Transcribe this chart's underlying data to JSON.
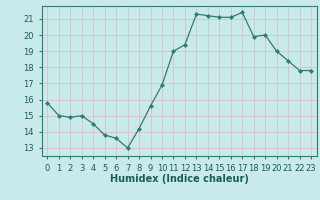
{
  "x": [
    0,
    1,
    2,
    3,
    4,
    5,
    6,
    7,
    8,
    9,
    10,
    11,
    12,
    13,
    14,
    15,
    16,
    17,
    18,
    19,
    20,
    21,
    22,
    23
  ],
  "y": [
    15.8,
    15.0,
    14.9,
    15.0,
    14.5,
    13.8,
    13.6,
    13.0,
    14.2,
    15.6,
    16.9,
    19.0,
    19.4,
    21.3,
    21.2,
    21.1,
    21.1,
    21.4,
    19.9,
    20.0,
    19.0,
    18.4,
    17.8,
    17.8
  ],
  "line_color": "#2e7d6e",
  "marker": "D",
  "marker_size": 2,
  "bg_color": "#c8eaea",
  "grid_color": "#ddbfbf",
  "xlabel": "Humidex (Indice chaleur)",
  "ylim": [
    12.5,
    21.8
  ],
  "xlim": [
    -0.5,
    23.5
  ],
  "yticks": [
    13,
    14,
    15,
    16,
    17,
    18,
    19,
    20,
    21
  ],
  "xtick_labels": [
    "0",
    "1",
    "2",
    "3",
    "4",
    "5",
    "6",
    "7",
    "8",
    "9",
    "10",
    "11",
    "12",
    "13",
    "14",
    "15",
    "16",
    "17",
    "18",
    "19",
    "20",
    "21",
    "22",
    "23"
  ],
  "xlabel_fontsize": 7,
  "tick_fontsize": 6,
  "title": ""
}
